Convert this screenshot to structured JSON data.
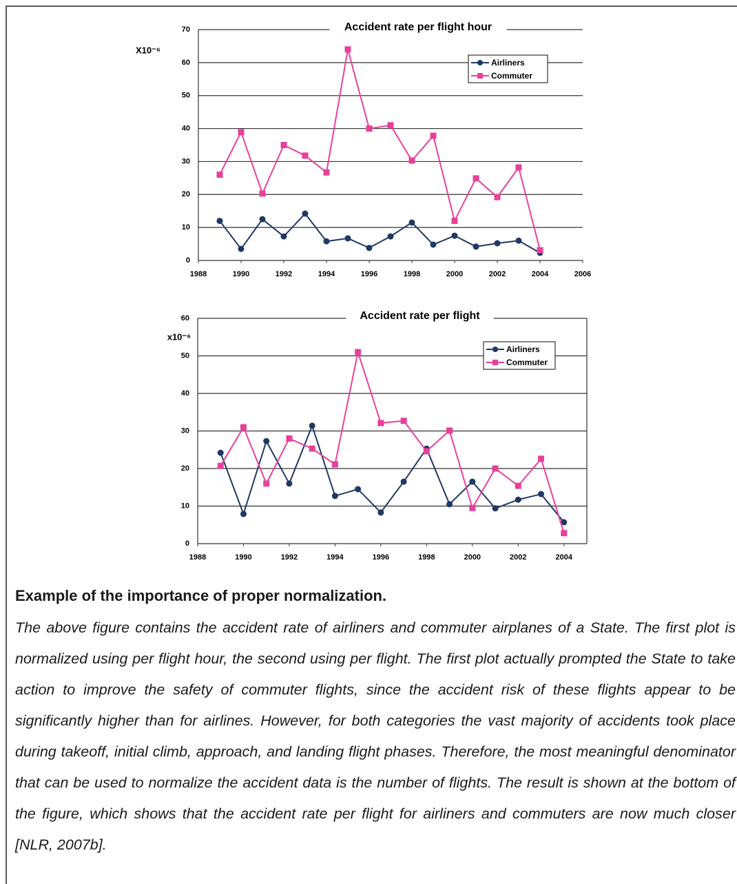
{
  "chart_data": [
    {
      "type": "line",
      "title": "Accident rate per flight hour",
      "unit_label": "X10⁻⁶",
      "x": [
        1989,
        1990,
        1991,
        1992,
        1993,
        1994,
        1995,
        1996,
        1997,
        1998,
        1999,
        2000,
        2001,
        2002,
        2003,
        2004
      ],
      "series": [
        {
          "name": "Airliners",
          "color": "#1f3864",
          "marker": "circle",
          "values": [
            12,
            3.5,
            12.5,
            7.3,
            14.2,
            5.8,
            6.7,
            3.8,
            7.3,
            11.5,
            4.8,
            7.5,
            4.2,
            5.2,
            6,
            2.3
          ]
        },
        {
          "name": "Commuter",
          "color": "#e8409a",
          "marker": "square",
          "values": [
            26,
            38.9,
            20.3,
            35,
            31.8,
            26.7,
            64,
            40,
            41,
            30.3,
            37.8,
            12,
            24.9,
            19.2,
            28.2,
            3.1
          ]
        }
      ],
      "xlim": [
        1988,
        2006
      ],
      "xticks": [
        1988,
        1990,
        1992,
        1994,
        1996,
        1998,
        2000,
        2002,
        2004,
        2006
      ],
      "ylim": [
        0,
        70
      ],
      "yticks": [
        0,
        10,
        20,
        30,
        40,
        50,
        60,
        70
      ],
      "grid": true,
      "legend": "upper right"
    },
    {
      "type": "line",
      "title": "Accident rate per flight",
      "unit_label": "x10⁻⁶",
      "x": [
        1989,
        1990,
        1991,
        1992,
        1993,
        1994,
        1995,
        1996,
        1997,
        1998,
        1999,
        2000,
        2001,
        2002,
        2003,
        2004
      ],
      "series": [
        {
          "name": "Airliners",
          "color": "#1f3864",
          "marker": "circle",
          "values": [
            24.2,
            7.9,
            27.3,
            16,
            31.4,
            12.7,
            14.5,
            8.3,
            16.5,
            25.3,
            10.5,
            16.5,
            9.4,
            11.7,
            13.2,
            5.7
          ]
        },
        {
          "name": "Commuter",
          "color": "#e8409a",
          "marker": "square",
          "values": [
            20.7,
            31,
            16,
            28,
            25.3,
            21.1,
            51,
            32.1,
            32.7,
            24.6,
            30.1,
            9.5,
            20,
            15.4,
            22.6,
            2.8
          ]
        }
      ],
      "xlim": [
        1988,
        2005
      ],
      "xticks": [
        1988,
        1990,
        1992,
        1994,
        1996,
        1998,
        2000,
        2002,
        2004
      ],
      "ylim": [
        0,
        60
      ],
      "yticks": [
        0,
        10,
        20,
        30,
        40,
        50,
        60
      ],
      "grid": true,
      "legend": "upper right"
    }
  ],
  "caption": {
    "heading": "Example of the importance of proper normalization.",
    "text": "The above figure contains the accident rate of airliners and commuter airplanes of a State. The first plot is normalized using per flight hour, the second using per flight. The first plot actually prompted the State to take action to improve the safety of commuter flights, since the accident risk of these flights appear to be significantly higher than for airlines. However, for both categories the vast majority of accidents took place during takeoff, initial climb, approach, and landing flight phases. Therefore, the most meaningful denominator that can be used to normalize the accident data is the number of flights. The result is shown at the bottom of the figure, which shows that the accident rate per flight for airliners and commuters are now much closer [NLR, 2007b]."
  }
}
